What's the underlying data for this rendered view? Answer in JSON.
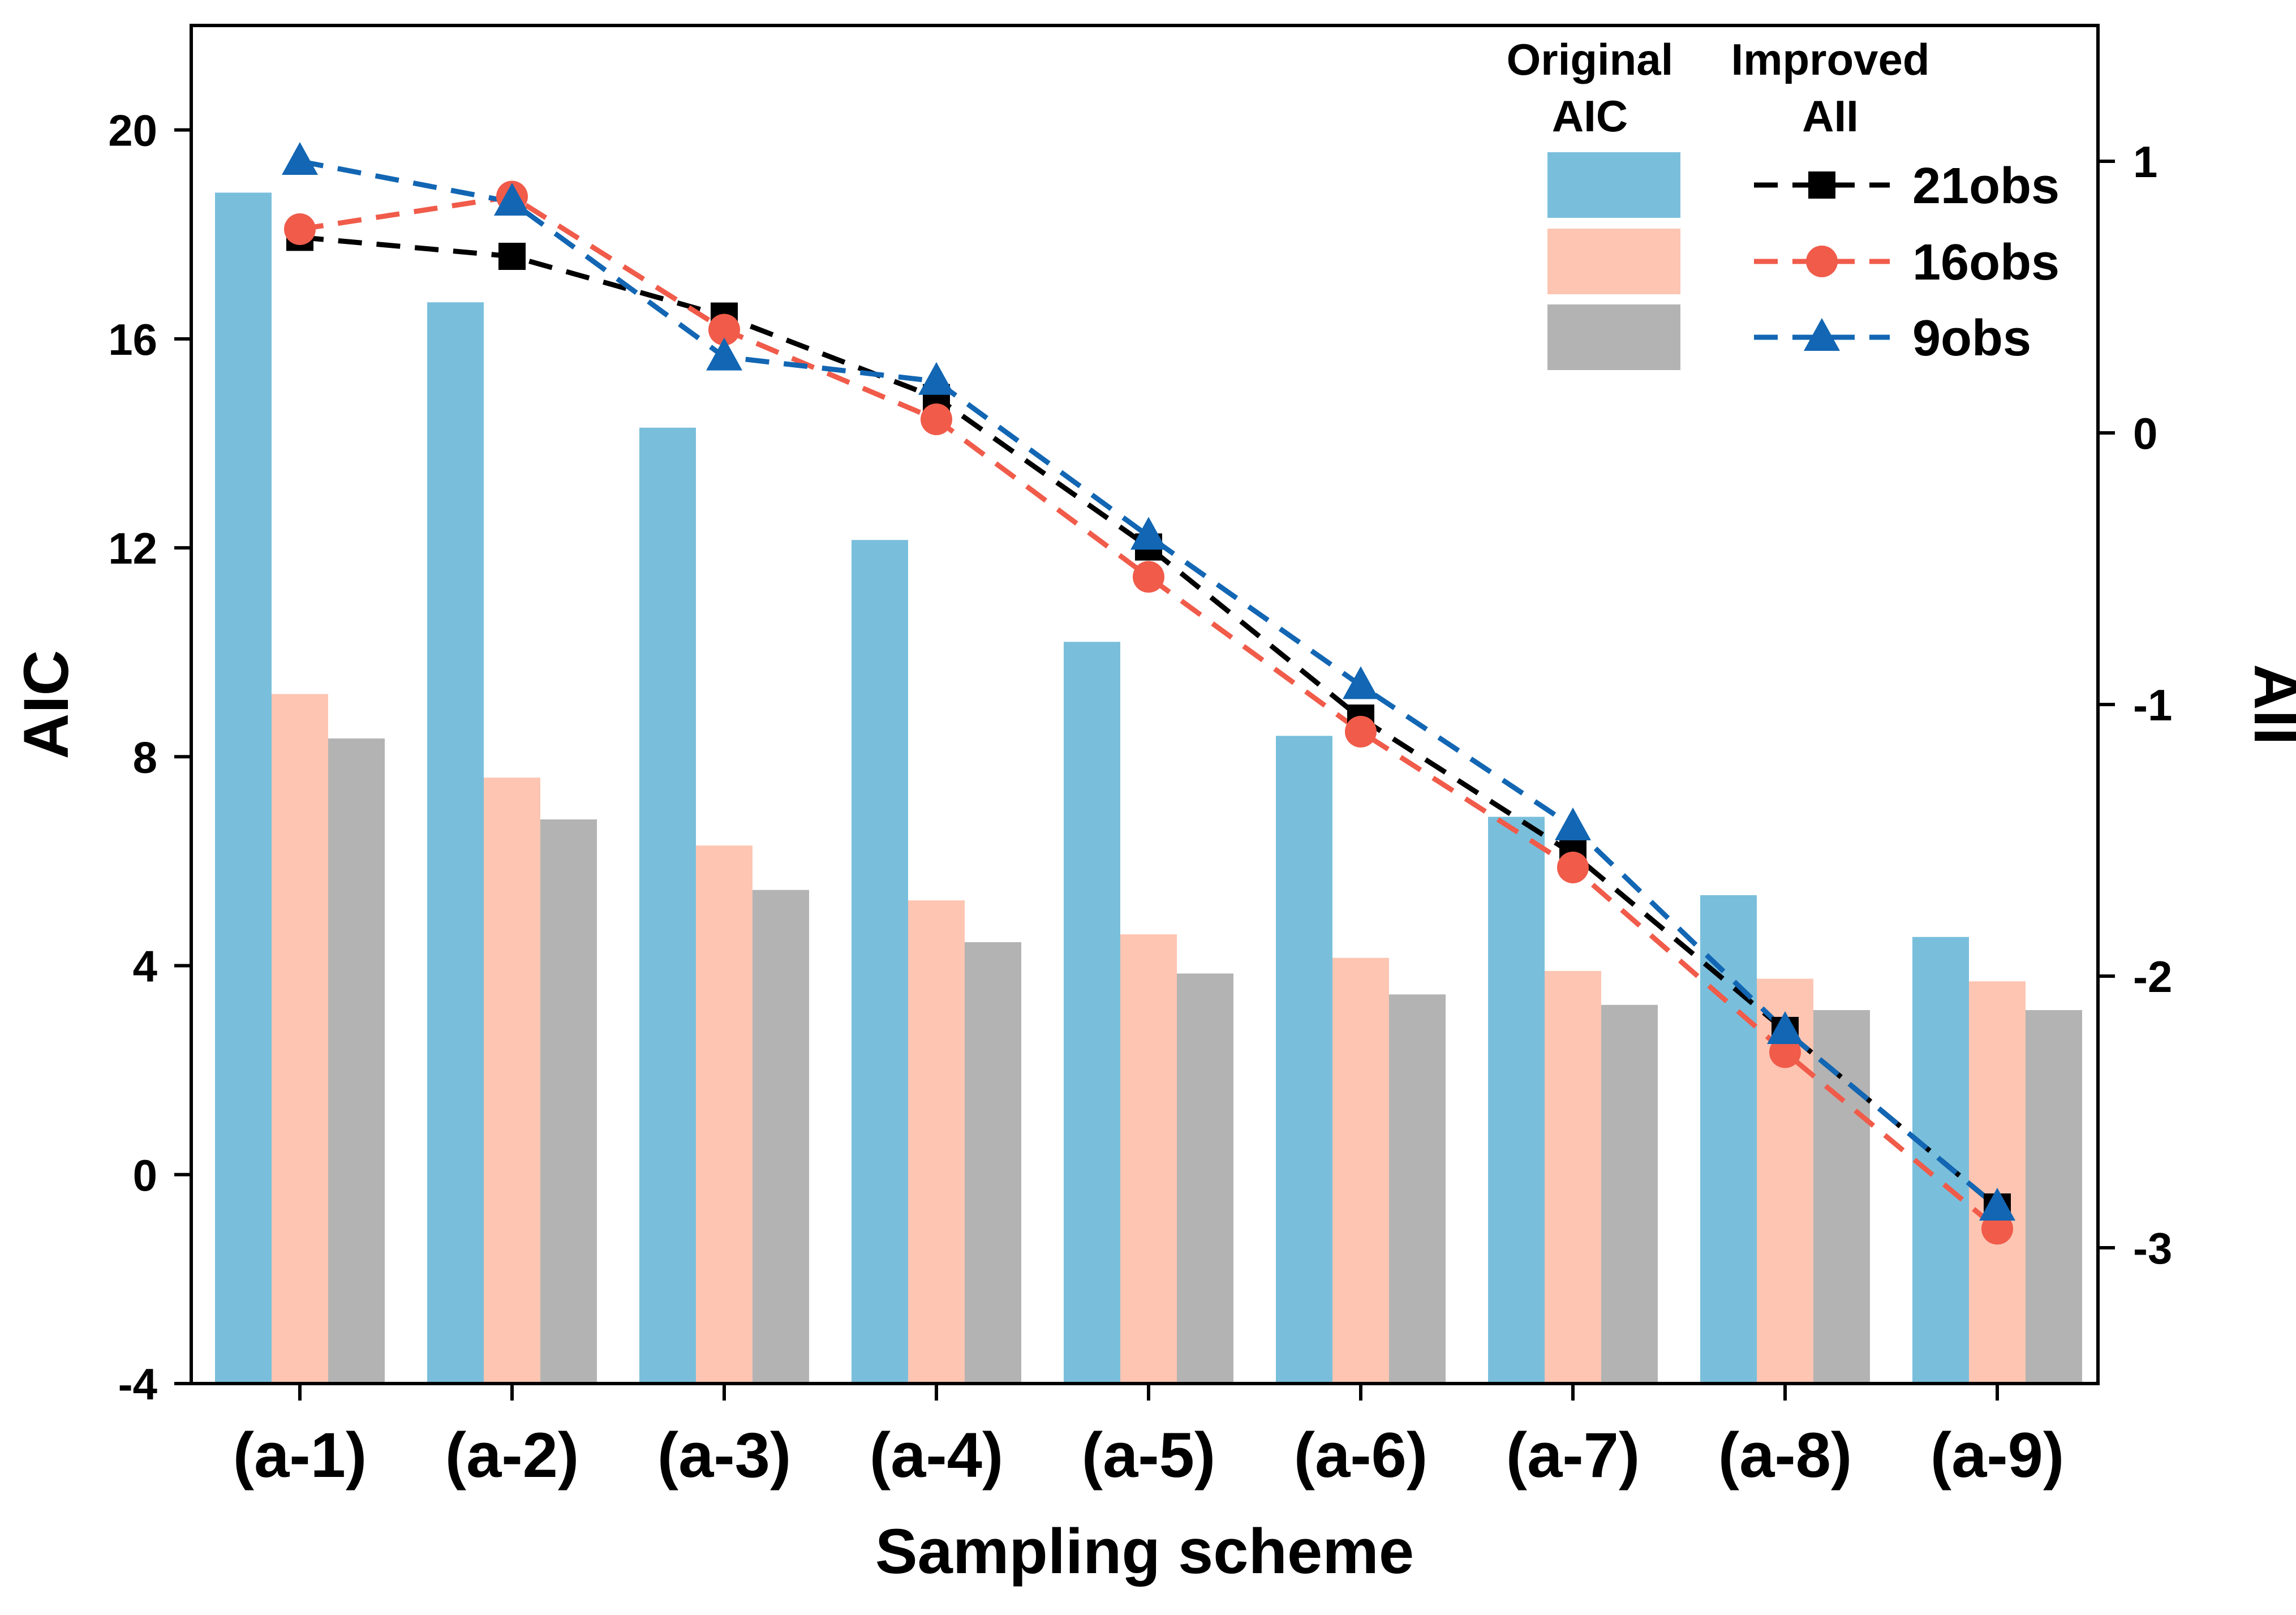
{
  "chart_data": {
    "type": "bar+line",
    "xlabel": "Sampling scheme",
    "categories": [
      "(a-1)",
      "(a-2)",
      "(a-3)",
      "(a-4)",
      "(a-5)",
      "(a-6)",
      "(a-7)",
      "(a-8)",
      "(a-9)"
    ],
    "left_axis": {
      "label": "AIC",
      "range": [
        -4,
        22
      ],
      "ticks": [
        -4,
        0,
        4,
        8,
        12,
        16,
        20
      ]
    },
    "right_axis": {
      "label": "AII",
      "range": [
        -3.5,
        1.5
      ],
      "ticks": [
        -3,
        -2,
        -1,
        0,
        1
      ]
    },
    "legend": {
      "bar_heading_line1": "Original",
      "bar_heading_line2": "AIC",
      "line_heading_line1": "Improved",
      "line_heading_line2": "AII",
      "placement": "top-right"
    },
    "bar_series": [
      {
        "name": "21obs",
        "color": "#79bfdc",
        "values": [
          18.8,
          16.7,
          14.3,
          12.15,
          10.2,
          8.4,
          6.85,
          5.35,
          4.55
        ]
      },
      {
        "name": "16obs",
        "color": "#fdc5b2",
        "values": [
          9.2,
          7.6,
          6.3,
          5.25,
          4.6,
          4.15,
          3.9,
          3.75,
          3.7
        ]
      },
      {
        "name": "9obs",
        "color": "#b3b3b3",
        "values": [
          8.35,
          6.8,
          5.45,
          4.45,
          3.85,
          3.45,
          3.25,
          3.15,
          3.15
        ]
      }
    ],
    "line_series": [
      {
        "name": "21obs",
        "color": "#000000",
        "marker": "square",
        "values": [
          0.72,
          0.65,
          0.43,
          0.13,
          -0.42,
          -1.05,
          -1.55,
          -2.2,
          -2.85
        ]
      },
      {
        "name": "16obs",
        "color": "#f05b4a",
        "marker": "circle",
        "values": [
          0.75,
          0.87,
          0.38,
          0.05,
          -0.53,
          -1.1,
          -1.6,
          -2.28,
          -2.93
        ]
      },
      {
        "name": "9obs",
        "color": "#1266b3",
        "marker": "triangle",
        "values": [
          1.0,
          0.85,
          0.28,
          0.19,
          -0.38,
          -0.93,
          -1.45,
          -2.2,
          -2.85
        ]
      }
    ]
  }
}
